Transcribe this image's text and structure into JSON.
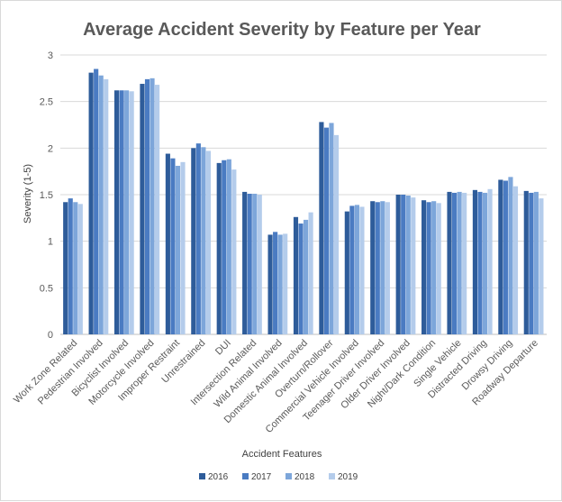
{
  "chart_data": {
    "type": "bar",
    "title": "Average Accident Severity by Feature per Year",
    "xlabel": "Accident Features",
    "ylabel": "Severity (1-5)",
    "ylim": [
      0,
      3
    ],
    "yticks": [
      "0",
      "0.5",
      "1",
      "1.5",
      "2",
      "2.5",
      "3"
    ],
    "grid": "horizontal",
    "legend_position": "bottom",
    "categories": [
      "Work Zone Related",
      "Pedestrian Involved",
      "Bicyclist Involved",
      "Motorcycle Involved",
      "Improper Restraint",
      "Unrestrained",
      "DUI",
      "Intersection Related",
      "Wild Animal Involved",
      "Domestic Animal Involved",
      "Overturn/Rollover",
      "Commercial Vehicle Involved",
      "Teenager Driver Involved",
      "Older Driver Involved",
      "Night/Dark Condition",
      "Single Vehicle",
      "Distracted Driving",
      "Drowsy Driving",
      "Roadway Departure"
    ],
    "series": [
      {
        "name": "2016",
        "color": "#2E5C9A",
        "values": [
          1.42,
          2.81,
          2.62,
          2.69,
          1.94,
          2.0,
          1.84,
          1.53,
          1.07,
          1.26,
          2.28,
          1.32,
          1.43,
          1.5,
          1.44,
          1.53,
          1.55,
          1.66,
          1.54
        ]
      },
      {
        "name": "2017",
        "color": "#4A7BC2",
        "values": [
          1.46,
          2.85,
          2.62,
          2.74,
          1.89,
          2.05,
          1.87,
          1.51,
          1.1,
          1.19,
          2.22,
          1.38,
          1.42,
          1.5,
          1.42,
          1.52,
          1.53,
          1.65,
          1.52
        ]
      },
      {
        "name": "2018",
        "color": "#7DA6DA",
        "values": [
          1.42,
          2.78,
          2.62,
          2.75,
          1.81,
          2.01,
          1.88,
          1.51,
          1.07,
          1.23,
          2.27,
          1.39,
          1.43,
          1.49,
          1.43,
          1.53,
          1.52,
          1.69,
          1.53
        ]
      },
      {
        "name": "2019",
        "color": "#B4CCEB",
        "values": [
          1.4,
          2.74,
          2.61,
          2.68,
          1.85,
          1.97,
          1.77,
          1.5,
          1.08,
          1.31,
          2.14,
          1.37,
          1.42,
          1.47,
          1.41,
          1.52,
          1.56,
          1.59,
          1.46
        ]
      }
    ]
  }
}
